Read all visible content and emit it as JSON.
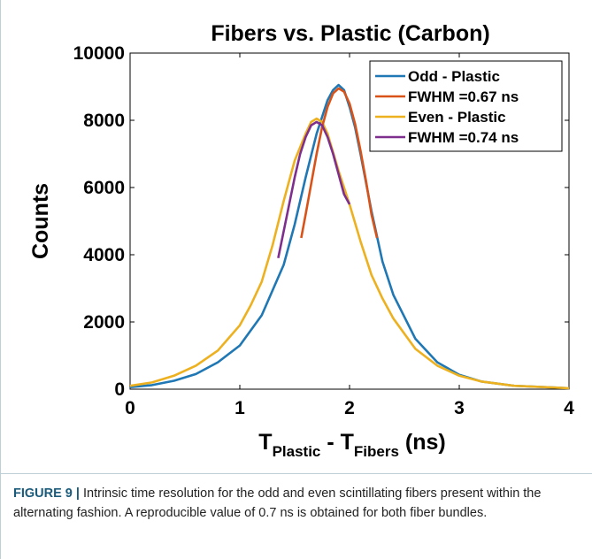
{
  "chart_data": {
    "type": "line",
    "title": "Fibers vs. Plastic (Carbon)",
    "ylabel": "Counts",
    "xlabel": {
      "t1": "T",
      "s1": "Plastic",
      "sep": " - ",
      "t2": "T",
      "s2": "Fibers",
      "unit": " (ns)"
    },
    "xlim": [
      0,
      4
    ],
    "ylim": [
      0,
      10000
    ],
    "xticks": [
      "0",
      "1",
      "2",
      "3",
      "4"
    ],
    "yticks": [
      "0",
      "2000",
      "4000",
      "6000",
      "8000",
      "10000"
    ],
    "legend_position": "top-right",
    "series": [
      {
        "name": "Odd - Plastic",
        "color": "#1f77b4",
        "x": [
          0,
          0.2,
          0.4,
          0.6,
          0.8,
          1.0,
          1.2,
          1.4,
          1.5,
          1.6,
          1.7,
          1.8,
          1.85,
          1.9,
          1.95,
          2.0,
          2.05,
          2.1,
          2.2,
          2.3,
          2.4,
          2.6,
          2.8,
          3.0,
          3.2,
          3.5,
          4.0
        ],
        "y": [
          60,
          120,
          250,
          450,
          800,
          1300,
          2200,
          3700,
          4900,
          6300,
          7600,
          8600,
          8900,
          9050,
          8900,
          8400,
          7800,
          7000,
          5300,
          3800,
          2800,
          1500,
          800,
          430,
          230,
          100,
          30
        ]
      },
      {
        "name": "FWHM =0.67 ns",
        "color": "#d95319",
        "x": [
          1.56,
          1.6,
          1.65,
          1.7,
          1.75,
          1.8,
          1.85,
          1.9,
          1.95,
          2.0,
          2.05,
          2.1,
          2.15,
          2.2,
          2.25
        ],
        "y": [
          4500,
          5200,
          6100,
          7000,
          7800,
          8400,
          8800,
          8950,
          8850,
          8500,
          7900,
          7100,
          6200,
          5200,
          4500
        ]
      },
      {
        "name": "Even - Plastic",
        "color": "#edb120",
        "x": [
          0,
          0.2,
          0.4,
          0.6,
          0.8,
          1.0,
          1.1,
          1.2,
          1.3,
          1.4,
          1.5,
          1.6,
          1.65,
          1.7,
          1.75,
          1.8,
          1.9,
          2.0,
          2.1,
          2.2,
          2.3,
          2.4,
          2.6,
          2.8,
          3.0,
          3.2,
          3.5,
          4.0
        ],
        "y": [
          100,
          200,
          400,
          700,
          1150,
          1900,
          2500,
          3200,
          4300,
          5600,
          6800,
          7600,
          7950,
          8050,
          7950,
          7600,
          6500,
          5500,
          4400,
          3400,
          2700,
          2100,
          1200,
          700,
          400,
          230,
          100,
          30
        ]
      },
      {
        "name": "FWHM =0.74 ns",
        "color": "#7e2f8e",
        "x": [
          1.35,
          1.4,
          1.45,
          1.5,
          1.55,
          1.6,
          1.65,
          1.7,
          1.75,
          1.8,
          1.85,
          1.9,
          1.95,
          2.0
        ],
        "y": [
          3900,
          4700,
          5500,
          6300,
          7000,
          7500,
          7850,
          7950,
          7850,
          7500,
          7000,
          6400,
          5800,
          5500
        ]
      }
    ]
  },
  "caption": {
    "label": "FIGURE 9 |",
    "text": " Intrinsic time resolution for the odd and even scintillating fibers present within the alternating fashion. A reproducible value of 0.7 ns is obtained for both fiber bundles."
  }
}
